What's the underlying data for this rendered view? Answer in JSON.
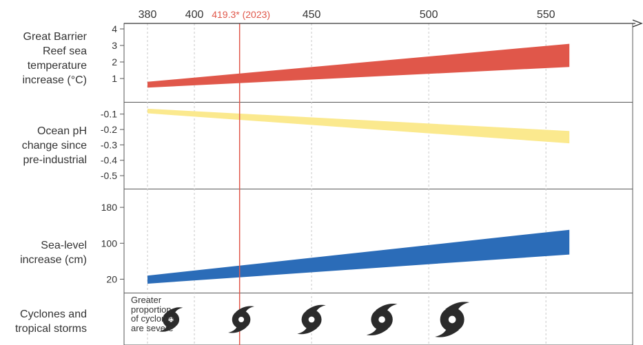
{
  "co2_axis": {
    "ticks": [
      380,
      400,
      450,
      500,
      550
    ],
    "min": 370,
    "max": 587
  },
  "marker": {
    "value": 419.3,
    "label": "419.3* (2023)",
    "color": "#e0574a"
  },
  "panels": [
    {
      "id": "temperature",
      "label": "Great Barrier\nReef sea\ntemperature\nincrease (°C)",
      "ticks": [
        "4",
        "3",
        "2",
        "1"
      ]
    },
    {
      "id": "ph",
      "label": "Ocean pH\nchange since\npre-industrial",
      "ticks": [
        "-0.1",
        "-0.2",
        "-0.3",
        "-0.4",
        "-0.5"
      ]
    },
    {
      "id": "sea_level",
      "label": "Sea-level\nincrease (cm)",
      "ticks": [
        "180",
        "100",
        "20"
      ]
    },
    {
      "id": "cyclones",
      "label": "Cyclones and\ntropical storms",
      "note": "Greater\nproportion\nof cyclones\nare severe"
    }
  ],
  "chart_data": {
    "type": "area",
    "x_axis": {
      "label": "",
      "ticks": [
        380,
        400,
        450,
        500,
        550
      ],
      "range": [
        370,
        587
      ]
    },
    "marker": {
      "x": 419.3,
      "label": "419.3* (2023)"
    },
    "series": [
      {
        "panel": "temperature",
        "color": "#e0574a",
        "ylim": [
          0,
          4.5
        ],
        "x": [
          380,
          560
        ],
        "lower": [
          0.45,
          1.7
        ],
        "upper": [
          0.8,
          3.1
        ]
      },
      {
        "panel": "ph",
        "color": "#fbe98e",
        "ylim": [
          -0.58,
          -0.03
        ],
        "x": [
          380,
          560
        ],
        "lower": [
          -0.095,
          -0.29
        ],
        "upper": [
          -0.065,
          -0.21
        ]
      },
      {
        "panel": "sea_level",
        "color": "#2b6cb8",
        "ylim": [
          -10,
          220
        ],
        "x": [
          380,
          560
        ],
        "lower": [
          10,
          75
        ],
        "upper": [
          28,
          130
        ]
      }
    ],
    "cyclone_icons": {
      "x": [
        390,
        420,
        450,
        480,
        510
      ],
      "relative_size": [
        1,
        1.1,
        1.2,
        1.3,
        1.45
      ],
      "color": "#2b2b2b"
    }
  }
}
